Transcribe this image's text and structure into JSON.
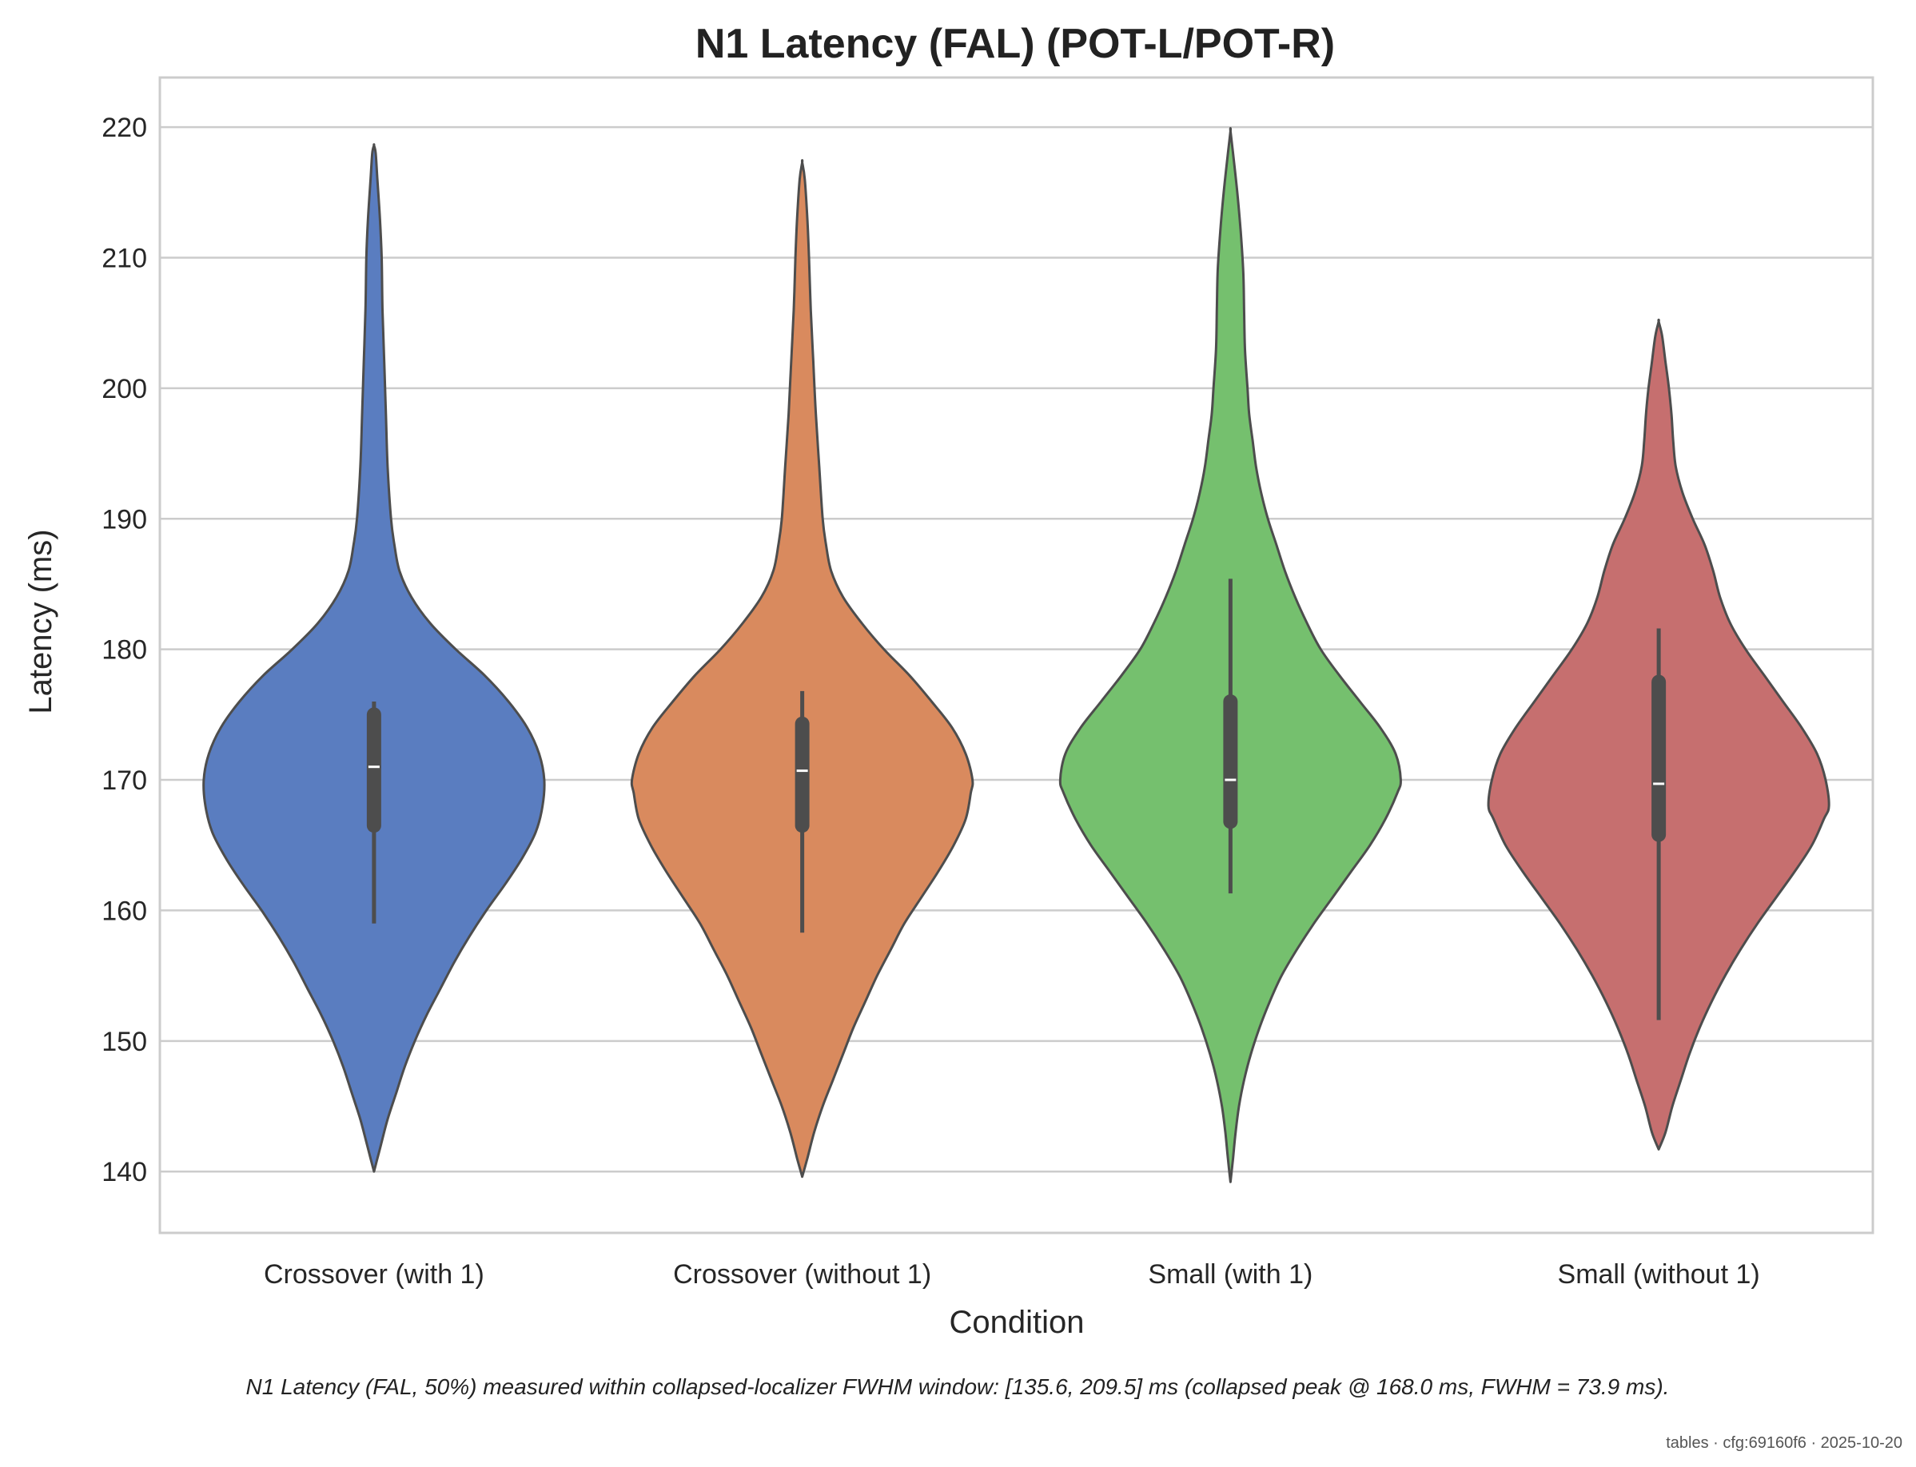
{
  "chart_data": {
    "type": "violin",
    "title": "N1 Latency (FAL) (POT-L/POT-R)",
    "xlabel": "Condition",
    "ylabel": "Latency (ms)",
    "ylim": [
      135.3,
      223.8
    ],
    "yticks": [
      140,
      150,
      160,
      170,
      180,
      190,
      200,
      210,
      220
    ],
    "grid": "horizontal",
    "categories": [
      "Crossover (with 1)",
      "Crossover (without 1)",
      "Small (with 1)",
      "Small (without 1)"
    ],
    "series": [
      {
        "category": "Crossover (with 1)",
        "color": "#5a7dc0",
        "range": [
          140.0,
          218.6
        ],
        "median": 171.0,
        "q1": 166.5,
        "q3": 175.0,
        "whisker_low": 159.0,
        "whisker_high": 176.0,
        "density": [
          [
            140,
            0
          ],
          [
            141,
            0.02
          ],
          [
            142,
            0.04
          ],
          [
            144,
            0.08
          ],
          [
            146,
            0.13
          ],
          [
            148,
            0.18
          ],
          [
            150,
            0.24
          ],
          [
            152,
            0.31
          ],
          [
            154,
            0.39
          ],
          [
            156,
            0.47
          ],
          [
            158,
            0.56
          ],
          [
            160,
            0.66
          ],
          [
            162,
            0.77
          ],
          [
            164,
            0.87
          ],
          [
            166,
            0.95
          ],
          [
            168,
            0.99
          ],
          [
            170,
            1.0
          ],
          [
            172,
            0.97
          ],
          [
            174,
            0.9
          ],
          [
            176,
            0.79
          ],
          [
            178,
            0.65
          ],
          [
            180,
            0.48
          ],
          [
            182,
            0.33
          ],
          [
            184,
            0.22
          ],
          [
            186,
            0.15
          ],
          [
            188,
            0.12
          ],
          [
            190,
            0.1
          ],
          [
            194,
            0.08
          ],
          [
            198,
            0.07
          ],
          [
            202,
            0.06
          ],
          [
            206,
            0.05
          ],
          [
            210,
            0.045
          ],
          [
            213,
            0.035
          ],
          [
            216,
            0.02
          ],
          [
            218,
            0.01
          ],
          [
            218.6,
            0
          ]
        ]
      },
      {
        "category": "Crossover (without 1)",
        "color": "#d98a5e",
        "range": [
          139.6,
          217.3
        ],
        "median": 170.7,
        "q1": 166.5,
        "q3": 174.3,
        "whisker_low": 158.3,
        "whisker_high": 176.8,
        "density": [
          [
            139.6,
            0
          ],
          [
            141,
            0.03
          ],
          [
            143,
            0.07
          ],
          [
            145,
            0.12
          ],
          [
            147,
            0.18
          ],
          [
            149,
            0.24
          ],
          [
            151,
            0.3
          ],
          [
            153,
            0.37
          ],
          [
            155,
            0.44
          ],
          [
            157,
            0.52
          ],
          [
            159,
            0.6
          ],
          [
            161,
            0.7
          ],
          [
            163,
            0.8
          ],
          [
            165,
            0.89
          ],
          [
            167,
            0.96
          ],
          [
            169,
            0.99
          ],
          [
            170,
            1.0
          ],
          [
            172,
            0.96
          ],
          [
            174,
            0.88
          ],
          [
            176,
            0.76
          ],
          [
            178,
            0.63
          ],
          [
            180,
            0.48
          ],
          [
            182,
            0.35
          ],
          [
            184,
            0.24
          ],
          [
            186,
            0.17
          ],
          [
            188,
            0.14
          ],
          [
            190,
            0.12
          ],
          [
            194,
            0.1
          ],
          [
            198,
            0.08
          ],
          [
            202,
            0.065
          ],
          [
            206,
            0.05
          ],
          [
            210,
            0.04
          ],
          [
            213,
            0.03
          ],
          [
            216,
            0.015
          ],
          [
            217.3,
            0
          ]
        ]
      },
      {
        "category": "Small (with 1)",
        "color": "#75c06e",
        "range": [
          139.2,
          219.7
        ],
        "median": 170.0,
        "q1": 166.8,
        "q3": 176.0,
        "whisker_low": 161.3,
        "whisker_high": 185.4,
        "density": [
          [
            139.2,
            0
          ],
          [
            141,
            0.015
          ],
          [
            143,
            0.03
          ],
          [
            145,
            0.05
          ],
          [
            147,
            0.08
          ],
          [
            149,
            0.12
          ],
          [
            151,
            0.17
          ],
          [
            153,
            0.23
          ],
          [
            155,
            0.3
          ],
          [
            157,
            0.39
          ],
          [
            159,
            0.49
          ],
          [
            161,
            0.6
          ],
          [
            163,
            0.71
          ],
          [
            165,
            0.82
          ],
          [
            167,
            0.91
          ],
          [
            169,
            0.98
          ],
          [
            170,
            1.0
          ],
          [
            172,
            0.97
          ],
          [
            174,
            0.88
          ],
          [
            176,
            0.76
          ],
          [
            178,
            0.64
          ],
          [
            180,
            0.53
          ],
          [
            182,
            0.45
          ],
          [
            184,
            0.38
          ],
          [
            186,
            0.32
          ],
          [
            188,
            0.27
          ],
          [
            190,
            0.22
          ],
          [
            192,
            0.18
          ],
          [
            194,
            0.15
          ],
          [
            196,
            0.13
          ],
          [
            198,
            0.11
          ],
          [
            200,
            0.1
          ],
          [
            203,
            0.085
          ],
          [
            206,
            0.08
          ],
          [
            209,
            0.075
          ],
          [
            212,
            0.06
          ],
          [
            215,
            0.04
          ],
          [
            218,
            0.015
          ],
          [
            219.7,
            0
          ]
        ]
      },
      {
        "category": "Small (without 1)",
        "color": "#c66f6f",
        "range": [
          141.7,
          205.1
        ],
        "median": 169.7,
        "q1": 165.8,
        "q3": 177.5,
        "whisker_low": 151.6,
        "whisker_high": 181.6,
        "density": [
          [
            141.7,
            0
          ],
          [
            143,
            0.04
          ],
          [
            145,
            0.08
          ],
          [
            147,
            0.13
          ],
          [
            149,
            0.18
          ],
          [
            151,
            0.24
          ],
          [
            153,
            0.31
          ],
          [
            155,
            0.39
          ],
          [
            157,
            0.48
          ],
          [
            159,
            0.58
          ],
          [
            161,
            0.69
          ],
          [
            163,
            0.8
          ],
          [
            165,
            0.9
          ],
          [
            167,
            0.97
          ],
          [
            168,
            1.0
          ],
          [
            170,
            0.98
          ],
          [
            172,
            0.93
          ],
          [
            174,
            0.84
          ],
          [
            176,
            0.73
          ],
          [
            178,
            0.62
          ],
          [
            180,
            0.51
          ],
          [
            182,
            0.42
          ],
          [
            184,
            0.36
          ],
          [
            186,
            0.32
          ],
          [
            188,
            0.27
          ],
          [
            190,
            0.2
          ],
          [
            192,
            0.14
          ],
          [
            194,
            0.1
          ],
          [
            196,
            0.085
          ],
          [
            198,
            0.075
          ],
          [
            200,
            0.06
          ],
          [
            202,
            0.04
          ],
          [
            204,
            0.02
          ],
          [
            205.1,
            0
          ]
        ]
      }
    ],
    "caption": "N1 Latency (FAL, 50%) measured within collapsed-localizer FWHM window: [135.6, 209.5] ms (collapsed peak @ 168.0 ms, FWHM = 73.9 ms).",
    "footer": "tables · cfg:69160f6 · 2025-10-20"
  }
}
